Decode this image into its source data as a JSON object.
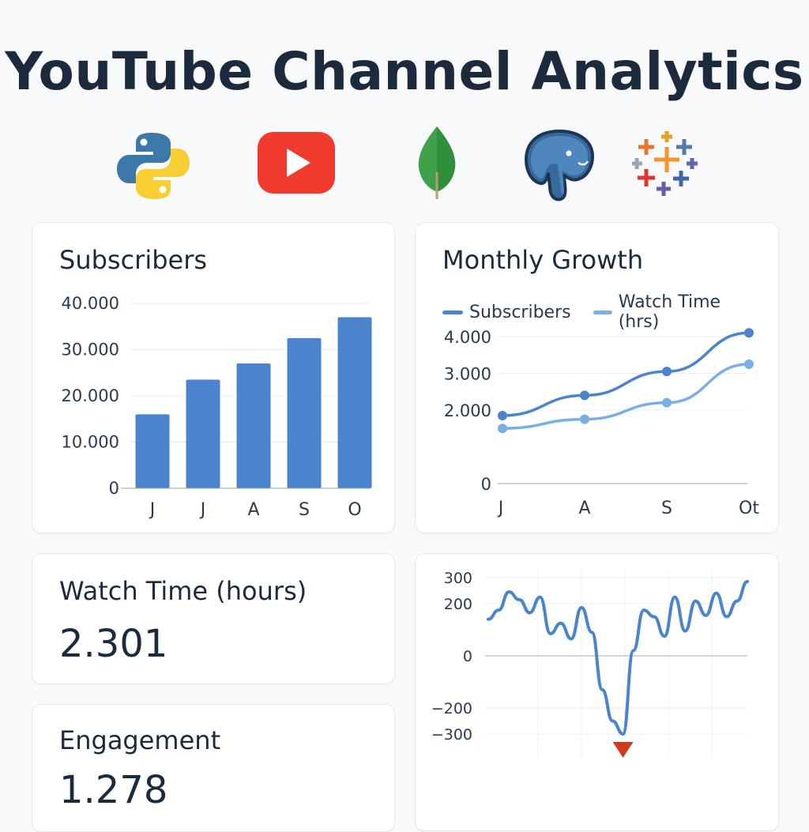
{
  "page": {
    "title": "YouTube Channel Analytics"
  },
  "logos": [
    {
      "name": "python-logo-icon"
    },
    {
      "name": "youtube-logo-icon"
    },
    {
      "name": "mongodb-logo-icon"
    },
    {
      "name": "postgresql-logo-icon"
    },
    {
      "name": "tableau-logo-icon"
    }
  ],
  "colors": {
    "accent": "#4a84cc",
    "accent_light": "#7aaee6",
    "youtube_red": "#f03a2e",
    "negative_marker": "#d2391f",
    "text": "#1b2a3d"
  },
  "subscribers_card": {
    "title": "Subscribers"
  },
  "growth_card": {
    "title": "Monthly Growth"
  },
  "watch_time_card": {
    "title": "Watch Time (hours)",
    "value": "2.301"
  },
  "engagement_card": {
    "title": "Engagement",
    "value": "1.278"
  },
  "chart_data": [
    {
      "type": "bar",
      "title": "Subscribers",
      "categories": [
        "J",
        "J",
        "A",
        "S",
        "O"
      ],
      "values": [
        16000,
        23500,
        27000,
        32500,
        37000
      ],
      "ylim": [
        0,
        40000
      ],
      "yticks": [
        0,
        10000,
        20000,
        30000,
        40000
      ],
      "ytick_labels": [
        "0",
        "10.000",
        "20.000",
        "30.000",
        "40.000"
      ],
      "grid": true
    },
    {
      "type": "line",
      "title": "Monthly Growth",
      "legend_position": "top-left",
      "x": [
        "J",
        "A",
        "S",
        "Ot"
      ],
      "series": [
        {
          "name": "Subscribers",
          "values": [
            1850,
            2400,
            3050,
            4100
          ]
        },
        {
          "name": "Watch Time (hrs)",
          "values": [
            1500,
            1750,
            2200,
            3250
          ]
        }
      ],
      "ylim": [
        0,
        4300
      ],
      "yticks": [
        0,
        2000,
        3000,
        4000
      ],
      "ytick_labels": [
        "0",
        "2.000",
        "3.000",
        "4.000"
      ],
      "grid": true
    },
    {
      "type": "line",
      "title": "",
      "series": [
        {
          "values": [
            140,
            175,
            245,
            215,
            165,
            225,
            85,
            125,
            65,
            185,
            90,
            -130,
            -250,
            -300,
            20,
            175,
            150,
            75,
            225,
            95,
            210,
            155,
            240,
            150,
            210,
            285
          ]
        }
      ],
      "ylim": [
        -300,
        300
      ],
      "yticks": [
        300,
        200,
        0,
        -200,
        -300
      ],
      "ytick_labels": [
        "300",
        "200",
        "0",
        "−200",
        "−300"
      ],
      "markers": [
        {
          "kind": "down-triangle",
          "at_min": true
        }
      ],
      "grid": true
    }
  ]
}
